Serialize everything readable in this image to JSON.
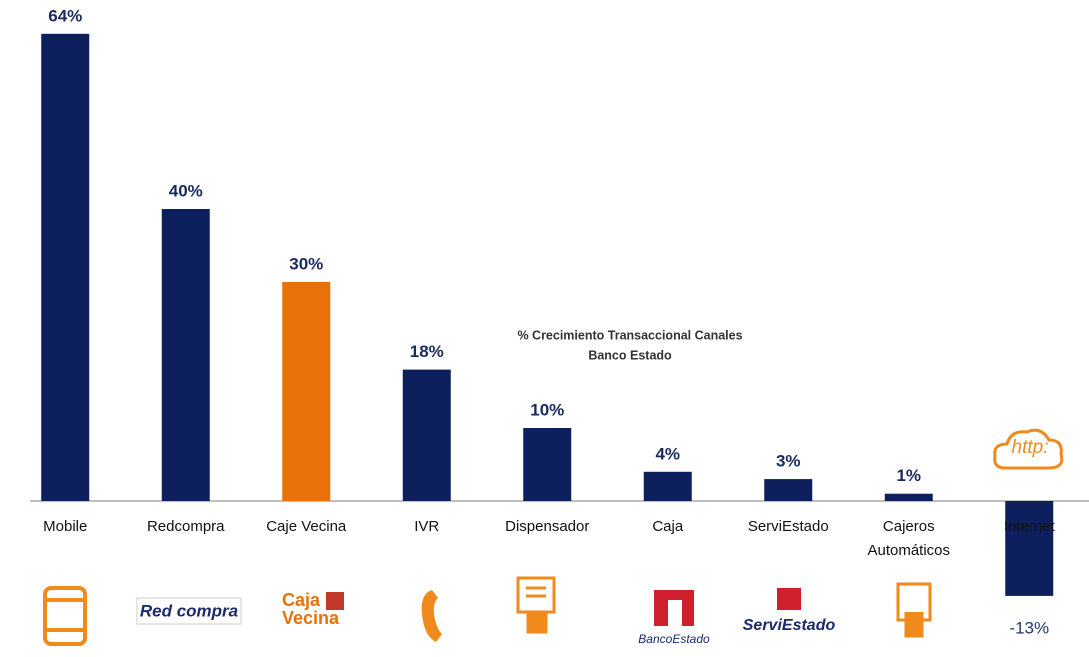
{
  "chart_data": {
    "type": "bar",
    "title_lines": [
      "% Crecimiento Transaccional Canales",
      "Banco Estado"
    ],
    "categories": [
      "Mobile",
      "Redcompra",
      "Caje Vecina",
      "IVR",
      "Dispensador",
      "Caja",
      "ServiEstado",
      [
        "Cajeros",
        "Automáticos"
      ],
      "Internet"
    ],
    "values": [
      64,
      40,
      30,
      18,
      10,
      4,
      3,
      1,
      -13
    ],
    "value_labels": [
      "64%",
      "40%",
      "30%",
      "18%",
      "10%",
      "4%",
      "3%",
      "1%",
      "-13%"
    ],
    "colors": [
      "#0d1f5c",
      "#0d1f5c",
      "#e8710a",
      "#0d1f5c",
      "#0d1f5c",
      "#0d1f5c",
      "#0d1f5c",
      "#0d1f5c",
      "#0d1f5c"
    ],
    "ylim": [
      -15,
      66
    ],
    "logos": {
      "redcompra": "Red compra",
      "caja_vecina": [
        "Caja",
        "Vecina"
      ],
      "bancoestado": "BancoEstado",
      "serviestado": "ServiEstado",
      "http": "http:"
    }
  }
}
